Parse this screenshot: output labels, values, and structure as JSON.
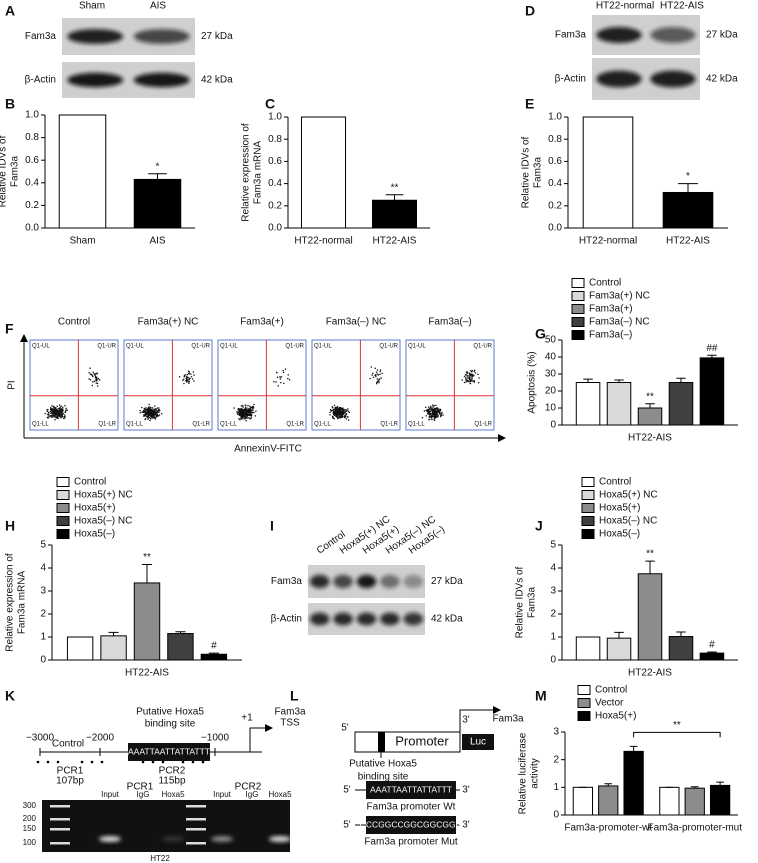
{
  "panel_letters": [
    "A",
    "B",
    "C",
    "D",
    "E",
    "F",
    "G",
    "H",
    "I",
    "J",
    "K",
    "L",
    "M"
  ],
  "blot_A": {
    "lanes": [
      "Sham",
      "AIS"
    ],
    "rows": [
      "Fam3a",
      "β-Actin"
    ],
    "sizes": [
      "27 kDa",
      "42 kDa"
    ]
  },
  "blot_D": {
    "lanes": [
      "HT22-normal",
      "HT22-AIS"
    ],
    "rows": [
      "Fam3a",
      "β-Actin"
    ],
    "sizes": [
      "27 kDa",
      "42 kDa"
    ]
  },
  "blot_I": {
    "lanes": [
      "Control",
      "Hoxa5(+) NC",
      "Hoxa5(+)",
      "Hoxa5(–) NC",
      "Hoxa5(–)"
    ],
    "rows": [
      "Fam3a",
      "β-Actin"
    ],
    "sizes": [
      "27 kDa",
      "42 kDa"
    ]
  },
  "flow_F": {
    "groups": [
      "Control",
      "Fam3a(+) NC",
      "Fam3a(+)",
      "Fam3a(–) NC",
      "Fam3a(–)"
    ],
    "y_label": "PI",
    "x_label": "AnnexinV-FITC",
    "quadrants": [
      "Q1-UL",
      "Q1-UR",
      "Q1-LL",
      "Q1-LR"
    ]
  },
  "diagram_K": {
    "positions": [
      "−3000",
      "−2000",
      "−1000",
      "+1"
    ],
    "tss": [
      "Fam3a",
      "TSS"
    ],
    "site_label": [
      "Putative Hoxa5",
      "binding site"
    ],
    "sequence": "AAATTAATTATTATTT",
    "control": "Control",
    "pcr": [
      {
        "name": "PCR1",
        "size": "107bp"
      },
      {
        "name": "PCR2",
        "size": "115bp"
      }
    ],
    "gel": {
      "groups": [
        "PCR1",
        "PCR2"
      ],
      "lanes": [
        "Input",
        "IgG",
        "Hoxa5",
        "Input",
        "IgG",
        "Hoxa5"
      ],
      "ladder": [
        "300",
        "200",
        "150",
        "100"
      ],
      "cell": "HT22"
    }
  },
  "diagram_L": {
    "ends": [
      "5'",
      "3'"
    ],
    "promoter": "Promoter",
    "reporter": "Luc",
    "gene": "Fam3a",
    "site_label": [
      "Putative Hoxa5",
      "binding site"
    ],
    "wt_sequence": "AAATTAATTATTATTT",
    "wt_label": "Fam3a promoter Wt",
    "mut_sequence": "CCCGGCCGGCGGCGGG",
    "mut_label": "Fam3a promoter Mut"
  },
  "chart_data": [
    {
      "type": "bar",
      "ylabel": [
        "Relative IDVs of",
        "Fam3a"
      ],
      "categories": [
        "Sham",
        "AIS"
      ],
      "values": [
        1,
        0.43
      ],
      "errors": [
        0,
        0.05
      ],
      "colors": [
        "#ffffff",
        "#000000"
      ],
      "annotations": [
        null,
        "*"
      ],
      "ylim": [
        0,
        1
      ],
      "yticks": [
        {
          "value": 0,
          "label": "0.0"
        },
        0.2,
        0.4,
        0.6,
        0.8,
        {
          "value": 1,
          "label": "1.0"
        }
      ]
    },
    {
      "type": "bar",
      "ylabel": [
        "Relative expression of",
        "Fam3a mRNA"
      ],
      "categories": [
        "HT22-normal",
        "HT22-AIS"
      ],
      "values": [
        1,
        0.25
      ],
      "errors": [
        0,
        0.05
      ],
      "colors": [
        "#ffffff",
        "#000000"
      ],
      "annotations": [
        null,
        "**"
      ],
      "ylim": [
        0,
        1
      ],
      "yticks": [
        {
          "value": 0,
          "label": "0.0"
        },
        0.2,
        0.4,
        0.6,
        0.8,
        {
          "value": 1,
          "label": "1.0"
        }
      ]
    },
    {
      "type": "bar",
      "ylabel": [
        "Relative IDVs of",
        "Fam3a"
      ],
      "categories": [
        "HT22-normal",
        "HT22-AIS"
      ],
      "values": [
        1,
        0.32
      ],
      "errors": [
        0,
        0.08
      ],
      "colors": [
        "#ffffff",
        "#000000"
      ],
      "annotations": [
        null,
        "*"
      ],
      "ylim": [
        0,
        1
      ],
      "yticks": [
        {
          "value": 0,
          "label": "0.0"
        },
        0.2,
        0.4,
        0.6,
        0.8,
        {
          "value": 1,
          "label": "1.0"
        }
      ]
    },
    {
      "type": "bar",
      "ylabel": [
        "Apoptosis (%)"
      ],
      "categories": [
        "HT22-AIS"
      ],
      "ylim": [
        0,
        50
      ],
      "yticks": [
        0,
        10,
        20,
        30,
        40,
        50
      ],
      "series": [
        {
          "name": "Control",
          "color": "#ffffff",
          "values": [
            25
          ],
          "errors": [
            2
          ],
          "annotations": [
            null
          ]
        },
        {
          "name": "Fam3a(+) NC",
          "color": "#d9d9d9",
          "values": [
            25
          ],
          "errors": [
            1.5
          ],
          "annotations": [
            null
          ]
        },
        {
          "name": "Fam3a(+)",
          "color": "#8c8c8c",
          "values": [
            10
          ],
          "errors": [
            2.5
          ],
          "annotations": [
            "**"
          ]
        },
        {
          "name": "Fam3a(–) NC",
          "color": "#404040",
          "values": [
            25
          ],
          "errors": [
            2.5
          ],
          "annotations": [
            null
          ]
        },
        {
          "name": "Fam3a(–)",
          "color": "#000000",
          "values": [
            39.5
          ],
          "errors": [
            1.5
          ],
          "annotations": [
            "##"
          ]
        }
      ]
    },
    {
      "type": "bar",
      "ylabel": [
        "Relative expression of",
        "Fam3a mRNA"
      ],
      "categories": [
        "HT22-AIS"
      ],
      "ylim": [
        0,
        5
      ],
      "yticks": [
        0,
        1,
        2,
        3,
        4,
        5
      ],
      "series": [
        {
          "name": "Control",
          "color": "#ffffff",
          "values": [
            1
          ],
          "errors": [
            0
          ],
          "annotations": [
            null
          ]
        },
        {
          "name": "Hoxa5(+) NC",
          "color": "#d9d9d9",
          "values": [
            1.05
          ],
          "errors": [
            0.15
          ],
          "annotations": [
            null
          ]
        },
        {
          "name": "Hoxa5(+)",
          "color": "#8c8c8c",
          "values": [
            3.35
          ],
          "errors": [
            0.8
          ],
          "annotations": [
            "**"
          ]
        },
        {
          "name": "Hoxa5(–) NC",
          "color": "#404040",
          "values": [
            1.15
          ],
          "errors": [
            0.08
          ],
          "annotations": [
            null
          ]
        },
        {
          "name": "Hoxa5(–)",
          "color": "#000000",
          "values": [
            0.25
          ],
          "errors": [
            0.05
          ],
          "annotations": [
            "#"
          ]
        }
      ]
    },
    {
      "type": "bar",
      "ylabel": [
        "Relative IDVs of",
        "Fam3a"
      ],
      "categories": [
        "HT22-AIS"
      ],
      "ylim": [
        0,
        5
      ],
      "yticks": [
        0,
        1,
        2,
        3,
        4,
        5
      ],
      "series": [
        {
          "name": "Control",
          "color": "#ffffff",
          "values": [
            1
          ],
          "errors": [
            0
          ],
          "annotations": [
            null
          ]
        },
        {
          "name": "Hoxa5(+) NC",
          "color": "#d9d9d9",
          "values": [
            0.95
          ],
          "errors": [
            0.25
          ],
          "annotations": [
            null
          ]
        },
        {
          "name": "Hoxa5(+)",
          "color": "#8c8c8c",
          "values": [
            3.75
          ],
          "errors": [
            0.55
          ],
          "annotations": [
            "**"
          ]
        },
        {
          "name": "Hoxa5(–) NC",
          "color": "#404040",
          "values": [
            1.02
          ],
          "errors": [
            0.2
          ],
          "annotations": [
            null
          ]
        },
        {
          "name": "Hoxa5(–)",
          "color": "#000000",
          "values": [
            0.3
          ],
          "errors": [
            0.05
          ],
          "annotations": [
            "#"
          ]
        }
      ]
    },
    {
      "type": "bar",
      "ylabel": [
        "Relative luciferase",
        "activity"
      ],
      "categories": [
        "Fam3a-promoter-wt",
        "Fam3a-promoter-mut"
      ],
      "ylim": [
        0,
        3
      ],
      "yticks": [
        0,
        1,
        2,
        3
      ],
      "bracket_annotation": "**",
      "series": [
        {
          "name": "Control",
          "color": "#ffffff",
          "values": [
            1,
            1
          ],
          "errors": [
            0,
            0
          ],
          "annotations": [
            null,
            null
          ]
        },
        {
          "name": "Vector",
          "color": "#8c8c8c",
          "values": [
            1.05,
            0.97
          ],
          "errors": [
            0.08,
            0.05
          ],
          "annotations": [
            null,
            null
          ]
        },
        {
          "name": "Hoxa5(+)",
          "color": "#000000",
          "values": [
            2.3,
            1.07
          ],
          "errors": [
            0.18,
            0.12
          ],
          "annotations": [
            null,
            null
          ]
        }
      ]
    }
  ]
}
